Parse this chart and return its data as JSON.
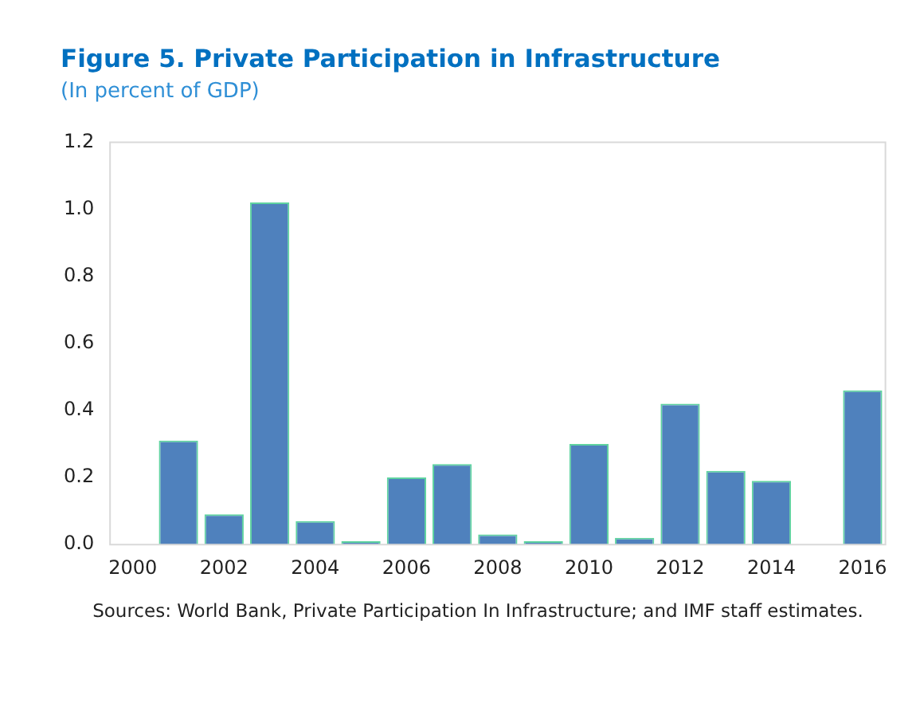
{
  "chart_data": {
    "type": "bar",
    "title": "Figure 5. Private Participation in Infrastructure",
    "subtitle": "(In percent of GDP)",
    "categories": [
      "2000",
      null,
      "2002",
      null,
      "2004",
      null,
      "2006",
      null,
      "2008",
      null,
      "2010",
      null,
      "2012",
      null,
      "2014",
      null,
      "2016"
    ],
    "values": [
      null,
      0.31,
      0.09,
      1.02,
      0.07,
      0.01,
      0.2,
      0.24,
      0.03,
      0.01,
      0.3,
      0.02,
      0.42,
      0.22,
      0.19,
      null,
      0.46
    ],
    "color": "#4f81bd",
    "ylim": [
      0,
      1.2
    ],
    "yticks": [
      {
        "value": 0,
        "label": "0.0"
      },
      {
        "value": 0.2,
        "label": "0.2"
      },
      {
        "value": 0.4,
        "label": "0.4"
      },
      {
        "value": 0.6,
        "label": "0.6"
      },
      {
        "value": 0.8,
        "label": "0.8"
      },
      {
        "value": 1,
        "label": "1.0"
      },
      {
        "value": 1.2,
        "label": "1.2"
      }
    ],
    "grid": false,
    "legend": false,
    "annotations": [
      "Sources: World Bank, Private Participation In Infrastructure; and IMF staff estimates."
    ]
  }
}
